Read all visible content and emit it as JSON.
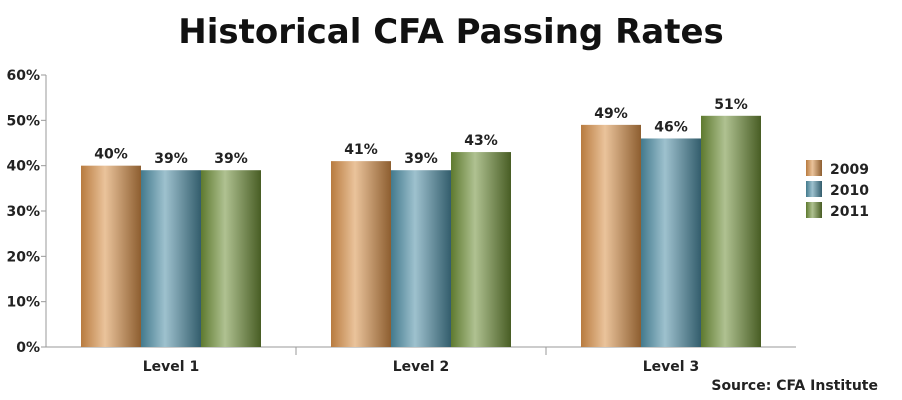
{
  "chart_data": {
    "type": "bar",
    "title": "Historical CFA Passing Rates",
    "categories": [
      "Level 1",
      "Level 2",
      "Level 3"
    ],
    "series": [
      {
        "name": "2009",
        "values": [
          40,
          41,
          49
        ],
        "labels": [
          "40%",
          "41%",
          "49%"
        ],
        "color": "#d9914a"
      },
      {
        "name": "2010",
        "values": [
          39,
          39,
          46
        ],
        "labels": [
          "39%",
          "39%",
          "46%"
        ],
        "color": "#4f8fa6"
      },
      {
        "name": "2011",
        "values": [
          39,
          43,
          51
        ],
        "labels": [
          "39%",
          "43%",
          "51%"
        ],
        "color": "#6e8f37"
      }
    ],
    "ylim": [
      0,
      60
    ],
    "yticks": [
      0,
      10,
      20,
      30,
      40,
      50,
      60
    ],
    "ytick_labels": [
      "0%",
      "10%",
      "20%",
      "30%",
      "40%",
      "50%",
      "60%"
    ],
    "xlabel": "",
    "ylabel": "",
    "grid": false,
    "legend": "right"
  },
  "source": "Source: CFA Institute"
}
